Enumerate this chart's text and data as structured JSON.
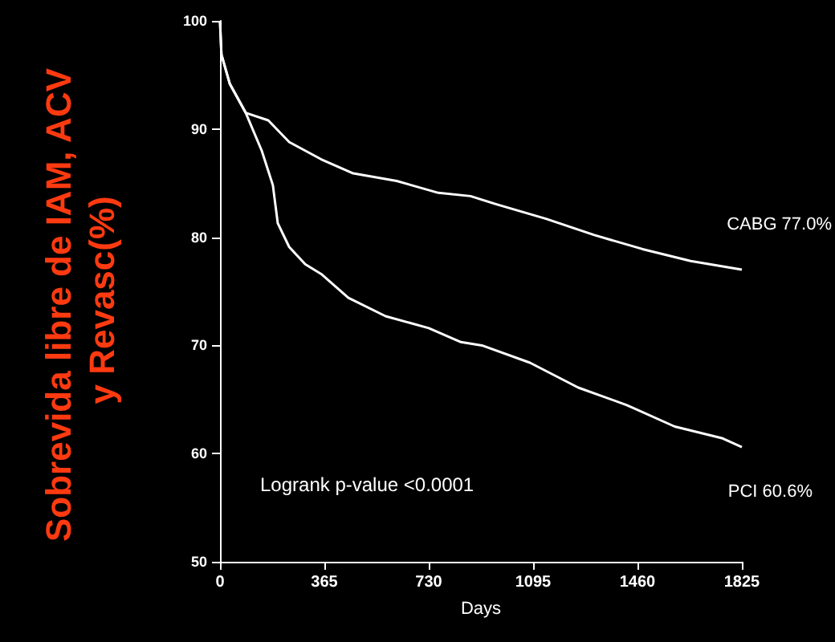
{
  "chart_data": {
    "type": "line",
    "xlabel": "Days",
    "ylabel": "Sobrevida libre de IAM, ACV y Revasc(%)",
    "xlim": [
      0,
      1825
    ],
    "xticks": [
      0,
      365,
      730,
      1095,
      1460,
      1825
    ],
    "ylim": [
      50,
      100
    ],
    "yticks": [
      50,
      60,
      70,
      80,
      90,
      100
    ],
    "grid": false,
    "legend": false,
    "marker": "none",
    "line_style": "solid",
    "annotations": [
      "Logrank p-value <0.0001"
    ],
    "series": [
      {
        "name": "CABG 77.0%",
        "color": "#ffffff",
        "x": [
          0,
          5,
          34,
          90,
          169,
          242,
          354,
          466,
          618,
          764,
          876,
          972,
          1140,
          1309,
          1478,
          1646,
          1825
        ],
        "values": [
          100,
          96.9,
          94.2,
          91.5,
          90.8,
          88.8,
          87.2,
          85.9,
          85.2,
          84.1,
          83.8,
          83.0,
          81.7,
          80.2,
          78.9,
          77.8,
          77.0
        ]
      },
      {
        "name": "PCI 60.6%",
        "color": "#ffffff",
        "x": [
          0,
          5,
          34,
          90,
          146,
          185,
          202,
          242,
          298,
          354,
          449,
          579,
          730,
          843,
          916,
          1084,
          1253,
          1421,
          1590,
          1758,
          1825
        ],
        "values": [
          100,
          96.9,
          94.2,
          91.5,
          88.0,
          84.8,
          81.3,
          79.1,
          77.5,
          76.6,
          74.4,
          72.7,
          71.6,
          70.3,
          70.0,
          68.4,
          66.1,
          64.5,
          62.5,
          61.4,
          60.6
        ]
      }
    ]
  }
}
